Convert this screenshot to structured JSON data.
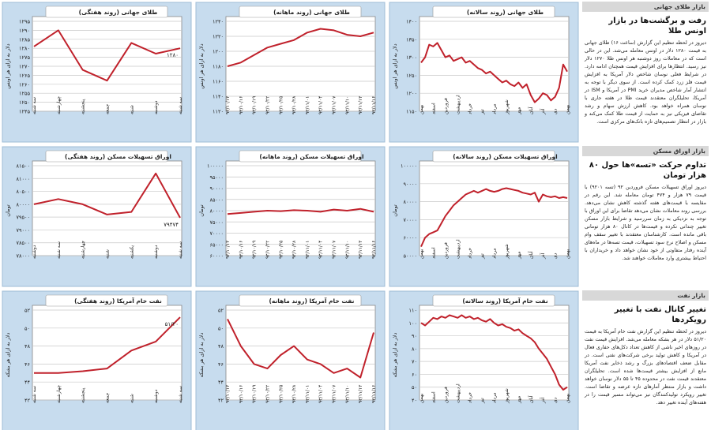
{
  "charts": [
    {
      "type": "line",
      "title": "طلای جهانی (روند سالانه)",
      "ylabel": "دلار به ازای هر اونس",
      "color": "#c0212b",
      "grid": true,
      "categories": [
        "بهمن",
        null,
        null,
        "اسفند",
        null,
        null,
        "فروردین",
        null,
        null,
        "اردیبهشت",
        null,
        null,
        "خرداد",
        null,
        null,
        "تیر",
        null,
        null,
        "مرداد",
        null,
        null,
        "شهریور",
        null,
        null,
        "مهر",
        null,
        null,
        "آبان",
        null,
        null,
        "آذر",
        null,
        null,
        "دی",
        null,
        null,
        "بهمن"
      ],
      "values": [
        1285,
        1300,
        1335,
        1330,
        1340,
        1320,
        1300,
        1305,
        1290,
        1295,
        1300,
        1285,
        1290,
        1280,
        1270,
        1265,
        1255,
        1260,
        1250,
        1240,
        1230,
        1235,
        1225,
        1220,
        1230,
        1215,
        1225,
        1195,
        1175,
        1185,
        1200,
        1195,
        1180,
        1190,
        1215,
        1280,
        1260
      ],
      "ylim": [
        1150,
        1400
      ],
      "yticks": [
        {
          "value": 1150,
          "label": "۱۱۵۰"
        },
        {
          "value": 1200,
          "label": "۱۲۰۰"
        },
        {
          "value": 1250,
          "label": "۱۲۵۰"
        },
        {
          "value": 1300,
          "label": "۱۳۰۰"
        },
        {
          "value": 1350,
          "label": "۱۳۵۰"
        },
        {
          "value": 1400,
          "label": "۱۴۰۰"
        }
      ]
    },
    {
      "type": "line",
      "title": "طلای جهانی (روند ماهانه)",
      "ylabel": "دلار به ازای هر اونس",
      "color": "#c0212b",
      "grid": true,
      "categories": [
        "۹۳/۱۰/۱۳",
        "۹۳/۱۰/۱۶",
        "۹۳/۱۰/۱۹",
        "۹۳/۱۰/۲۲",
        "۹۳/۱۰/۲۵",
        "۹۳/۱۰/۲۸",
        "۹۳/۱۱/۰۱",
        "۹۳/۱۱/۰۴",
        "۹۳/۱۱/۰۷",
        "۹۳/۱۱/۱۰",
        "۹۳/۱۱/۱۳",
        "۹۳/۱۱/۱۶"
      ],
      "values": [
        1180,
        1185,
        1195,
        1205,
        1210,
        1215,
        1225,
        1230,
        1228,
        1222,
        1220,
        1225
      ],
      "ylim": [
        1120,
        1240
      ],
      "yticks": [
        {
          "value": 1120,
          "label": "۱۱۲۰"
        },
        {
          "value": 1140,
          "label": "۱۱۴۰"
        },
        {
          "value": 1160,
          "label": "۱۱۶۰"
        },
        {
          "value": 1180,
          "label": "۱۱۸۰"
        },
        {
          "value": 1200,
          "label": "۱۲۰۰"
        },
        {
          "value": 1220,
          "label": "۱۲۲۰"
        },
        {
          "value": 1240,
          "label": "۱۲۴۰"
        }
      ]
    },
    {
      "type": "line",
      "title": "طلای جهانی (روند هفتگی)",
      "ylabel": "دلار به ازای هر اونس",
      "color": "#c0212b",
      "grid": true,
      "categories": [
        "سه شنبه",
        "چهارشنبه",
        "پنجشنبه",
        "جمعه",
        "شنبه",
        "دوشنبه",
        "سه شنبه"
      ],
      "values": [
        1281,
        1290,
        1268,
        1262,
        1283,
        1277,
        1280
      ],
      "value_labels": [
        null,
        null,
        null,
        null,
        null,
        null,
        "۱۲۸۰"
      ],
      "ylim": [
        1245,
        1295
      ],
      "yticks": [
        {
          "value": 1245,
          "label": "۱۲۴۵"
        },
        {
          "value": 1250,
          "label": "۱۲۵۰"
        },
        {
          "value": 1255,
          "label": "۱۲۵۵"
        },
        {
          "value": 1260,
          "label": "۱۲۶۰"
        },
        {
          "value": 1265,
          "label": "۱۲۶۵"
        },
        {
          "value": 1270,
          "label": "۱۲۷۰"
        },
        {
          "value": 1275,
          "label": "۱۲۷۵"
        },
        {
          "value": 1280,
          "label": "۱۲۸۰"
        },
        {
          "value": 1285,
          "label": "۱۲۸۵"
        },
        {
          "value": 1290,
          "label": "۱۲۹۰"
        },
        {
          "value": 1295,
          "label": "۱۲۹۵"
        }
      ]
    },
    {
      "type": "line",
      "title": "اوراق تسهیلات مسکن (روند سالانه)",
      "ylabel": "تومان",
      "color": "#c0212b",
      "grid": true,
      "categories": [
        "بهمن",
        null,
        null,
        "اسفند",
        null,
        null,
        "فروردین",
        null,
        null,
        "اردیبهشت",
        null,
        null,
        "خرداد",
        null,
        null,
        "تیر",
        null,
        null,
        "مرداد",
        null,
        null,
        "شهریور",
        null,
        null,
        "مهر",
        null,
        null,
        "آبان",
        null,
        null,
        "آذر",
        null,
        null,
        "دی",
        null,
        null,
        "بهمن"
      ],
      "values": [
        55000,
        60000,
        62000,
        63000,
        64000,
        68000,
        72000,
        75000,
        78000,
        80000,
        82000,
        84000,
        85000,
        86000,
        85000,
        86000,
        87000,
        86000,
        85500,
        86000,
        87000,
        87500,
        87000,
        86500,
        86000,
        85000,
        84500,
        84000,
        85000,
        80000,
        84000,
        83000,
        82500,
        83000,
        82000,
        82500,
        82000
      ],
      "ylim": [
        50000,
        100000
      ],
      "yticks": [
        {
          "value": 50000,
          "label": "۵۰۰۰۰"
        },
        {
          "value": 60000,
          "label": "۶۰۰۰۰"
        },
        {
          "value": 70000,
          "label": "۷۰۰۰۰"
        },
        {
          "value": 80000,
          "label": "۸۰۰۰۰"
        },
        {
          "value": 90000,
          "label": "۹۰۰۰۰"
        },
        {
          "value": 100000,
          "label": "۱۰۰۰۰۰"
        }
      ]
    },
    {
      "type": "line",
      "title": "اوراق تسهیلات مسکن (روند ماهانه)",
      "ylabel": "تومان",
      "color": "#c0212b",
      "grid": true,
      "categories": [
        "۹۳/۱۰/۱۳",
        "۹۳/۱۰/۱۶",
        "۹۳/۱۰/۱۹",
        "۹۳/۱۰/۲۲",
        "۹۳/۱۰/۲۵",
        "۹۳/۱۰/۲۸",
        "۹۳/۱۱/۰۱",
        "۹۳/۱۱/۰۴",
        "۹۳/۱۱/۰۷",
        "۹۳/۱۱/۱۰",
        "۹۳/۱۱/۱۳",
        "۹۳/۱۱/۱۶"
      ],
      "values": [
        78500,
        79000,
        79500,
        80000,
        79800,
        80200,
        80000,
        79500,
        80500,
        80000,
        80800,
        79500
      ],
      "ylim": [
        60000,
        100000
      ],
      "yticks": [
        {
          "value": 60000,
          "label": "۶۰۰۰۰"
        },
        {
          "value": 65000,
          "label": "۶۵۰۰۰"
        },
        {
          "value": 70000,
          "label": "۷۰۰۰۰"
        },
        {
          "value": 75000,
          "label": "۷۵۰۰۰"
        },
        {
          "value": 80000,
          "label": "۸۰۰۰۰"
        },
        {
          "value": 85000,
          "label": "۸۵۰۰۰"
        },
        {
          "value": 90000,
          "label": "۹۰۰۰۰"
        },
        {
          "value": 95000,
          "label": "۹۵۰۰۰"
        },
        {
          "value": 100000,
          "label": "۱۰۰۰۰۰"
        }
      ]
    },
    {
      "type": "line",
      "title": "اوراق تسهیلات مسکن (روند هفتگی)",
      "ylabel": "تومان",
      "color": "#c0212b",
      "grid": true,
      "categories": [
        "دوشنبه",
        "سه شنبه",
        "چهارشنبه",
        "شنبه",
        "یکشنبه",
        "دوشنبه",
        "سه شنبه"
      ],
      "values": [
        80000,
        80200,
        80000,
        79600,
        79700,
        81200,
        79474
      ],
      "value_labels": [
        null,
        null,
        null,
        null,
        null,
        null,
        "۷۹۴۷۴"
      ],
      "ylim": [
        78000,
        81500
      ],
      "yticks": [
        {
          "value": 78000,
          "label": "۷۸۰۰۰"
        },
        {
          "value": 78500,
          "label": "۷۸۵۰۰"
        },
        {
          "value": 79000,
          "label": "۷۹۰۰۰"
        },
        {
          "value": 79500,
          "label": "۷۹۵۰۰"
        },
        {
          "value": 80000,
          "label": "۸۰۰۰۰"
        },
        {
          "value": 80500,
          "label": "۸۰۵۰۰"
        },
        {
          "value": 81000,
          "label": "۸۱۰۰۰"
        },
        {
          "value": 81500,
          "label": "۸۱۵۰۰"
        }
      ]
    },
    {
      "type": "line",
      "title": "نفت خام آمریکا (روند سالانه)",
      "ylabel": "دلار به ازای هر بشکه",
      "color": "#c0212b",
      "grid": true,
      "categories": [
        "بهمن",
        null,
        null,
        "اسفند",
        null,
        null,
        "فروردین",
        null,
        null,
        "اردیبهشت",
        null,
        null,
        "خرداد",
        null,
        null,
        "تیر",
        null,
        null,
        "مرداد",
        null,
        null,
        "شهریور",
        null,
        null,
        "مهر",
        null,
        null,
        "آبان",
        null,
        null,
        "آذر",
        null,
        null,
        "دی",
        null,
        null,
        "بهمن"
      ],
      "values": [
        100,
        98,
        101,
        104,
        103,
        105,
        104,
        106,
        105,
        104,
        106,
        104,
        105,
        103,
        104,
        102,
        101,
        103,
        100,
        98,
        99,
        97,
        96,
        94,
        95,
        92,
        90,
        88,
        85,
        80,
        76,
        72,
        66,
        60,
        52,
        48,
        50
      ],
      "ylim": [
        40,
        110
      ],
      "yticks": [
        {
          "value": 40,
          "label": "۴۰"
        },
        {
          "value": 50,
          "label": "۵۰"
        },
        {
          "value": 60,
          "label": "۶۰"
        },
        {
          "value": 70,
          "label": "۷۰"
        },
        {
          "value": 80,
          "label": "۸۰"
        },
        {
          "value": 90,
          "label": "۹۰"
        },
        {
          "value": 100,
          "label": "۱۰۰"
        },
        {
          "value": 110,
          "label": "۱۱۰"
        }
      ]
    },
    {
      "type": "line",
      "title": "نفت خام آمریکا (روند ماهانه)",
      "ylabel": "دلار به ازای هر بشکه",
      "color": "#c0212b",
      "grid": true,
      "categories": [
        "۹۳/۱۰/۱۳",
        "۹۳/۱۰/۱۶",
        "۹۳/۱۰/۱۹",
        "۹۳/۱۰/۲۲",
        "۹۳/۱۰/۲۵",
        "۹۳/۱۰/۲۸",
        "۹۳/۱۱/۰۱",
        "۹۳/۱۱/۰۴",
        "۹۳/۱۱/۰۷",
        "۹۳/۱۱/۱۰",
        "۹۳/۱۱/۱۳",
        "۹۳/۱۱/۱۶"
      ],
      "values": [
        51,
        48,
        46,
        45.5,
        47,
        48,
        46.5,
        46,
        45,
        45.5,
        44.5,
        49.5
      ],
      "ylim": [
        42,
        52
      ],
      "yticks": [
        {
          "value": 42,
          "label": "۴۲"
        },
        {
          "value": 44,
          "label": "۴۴"
        },
        {
          "value": 46,
          "label": "۴۶"
        },
        {
          "value": 48,
          "label": "۴۸"
        },
        {
          "value": 50,
          "label": "۵۰"
        },
        {
          "value": 52,
          "label": "۵۲"
        }
      ]
    },
    {
      "type": "line",
      "title": "نفت خام آمریکا (روند هفتگی)",
      "ylabel": "دلار به ازای هر بشکه",
      "color": "#c0212b",
      "grid": true,
      "categories": [
        "سه شنبه",
        "چهارشنبه",
        "پنجشنبه",
        "جمعه",
        "شنبه",
        "دوشنبه",
        "سه شنبه"
      ],
      "values": [
        45,
        45,
        45.2,
        45.5,
        47.5,
        48.5,
        51.2
      ],
      "value_labels": [
        null,
        null,
        null,
        null,
        null,
        null,
        "۵۱/۲۰"
      ],
      "ylim": [
        42,
        52
      ],
      "yticks": [
        {
          "value": 42,
          "label": "۴۲"
        },
        {
          "value": 44,
          "label": "۴۴"
        },
        {
          "value": 46,
          "label": "۴۶"
        },
        {
          "value": 48,
          "label": "۴۸"
        },
        {
          "value": 50,
          "label": "۵۰"
        },
        {
          "value": 52,
          "label": "۵۲"
        }
      ]
    }
  ],
  "articles": [
    {
      "section": "بازار طلای جهانی",
      "title": "رفت و برگشت‌ها در بازار اونس طلا",
      "body": "دیروز در لحظه تنظیم این گزارش (ساعت ۱۶) طلای جهانی به قیمت ۱۲۸۰ دلار در اونس معامله می‌شد. این در حالی است که در معاملات روز دوشنبه هر اونس طلا ۱۲۷۰ دلار نیز رسید. انتظارها برای افزایش قیمت همچنان ادامه دارد. در شرایط فعلی نوسان شاخص دلار آمریکا به افزایش قیمت فلز زرد کمک کرده است. از سوی دیگر با توجه به انتشار آمار شاخص مدیران خرید PMI در آمریکا و ISM در آمریکا، تحلیلگران معتقدند قیمت طلا در هفته جاری با نوسان همراه خواهد بود. کاهش ارزش سهام و رشد تقاضای فیزیکی نیز به حمایت از قیمت طلا کمک می‌کند و بازار در انتظار تصمیم‌های تازه بانک‌های مرکزی است."
    },
    {
      "section": "بازار اوراق مسکن",
      "title": "تداوم حرکت «تسه»ها حول ۸۰ هزار تومان",
      "body": "دیروز اوراق تسهیلات مسکن فروردین ۹۲ (تسه ۹۲۰۱) با قیمت ۷۹ هزار و ۴۷۴ تومان معامله شد. این رقم در مقایسه با قیمت‌های هفته گذشته کاهش نشان می‌دهد. بررسی روند معاملات نشان می‌دهد تقاضا برای این اوراق با توجه به نزدیکی به زمان سررسید و شرایط بازار مسکن تغییر چندانی نکرده و قیمت‌ها در کانال ۸۰ هزار تومانی باقی مانده است. کارشناسان معتقدند با تغییر سقف وام مسکن و اصلاح نرخ سود تسهیلات، قیمت تسه‌ها در ماه‌های آینده رفتار متفاوتی از خود نشان خواهد داد و خریداران با احتیاط بیشتری وارد معاملات خواهند شد."
    },
    {
      "section": "بازار نفت",
      "title": "تغییر کانال نفت با تغییر رویکردها",
      "body": "دیروز در لحظه تنظیم این گزارش نفت خام آمریکا به قیمت ۵۱/۲۰ دلار در هر بشکه معامله می‌شد. افزایش قیمت نفت در روزهای اخیر ناشی از کاهش تعداد دکل‌های حفاری فعال در آمریکا و کاهش تولید برخی شرکت‌های نفتی است. در مقابل ضعف اقتصادهای بزرگ و رشد ذخایر نفت آمریکا مانع از افزایش بیشتر قیمت‌ها شده است. تحلیلگران معتقدند قیمت نفت در محدوده ۴۵ تا ۵۵ دلار نوسان خواهد داشت و بازار منتظر آمارهای تازه عرضه و تقاضا است. تغییر رویکرد تولیدکنندگان نیز می‌تواند مسیر قیمت را در هفته‌های آینده تغییر دهد."
    }
  ]
}
